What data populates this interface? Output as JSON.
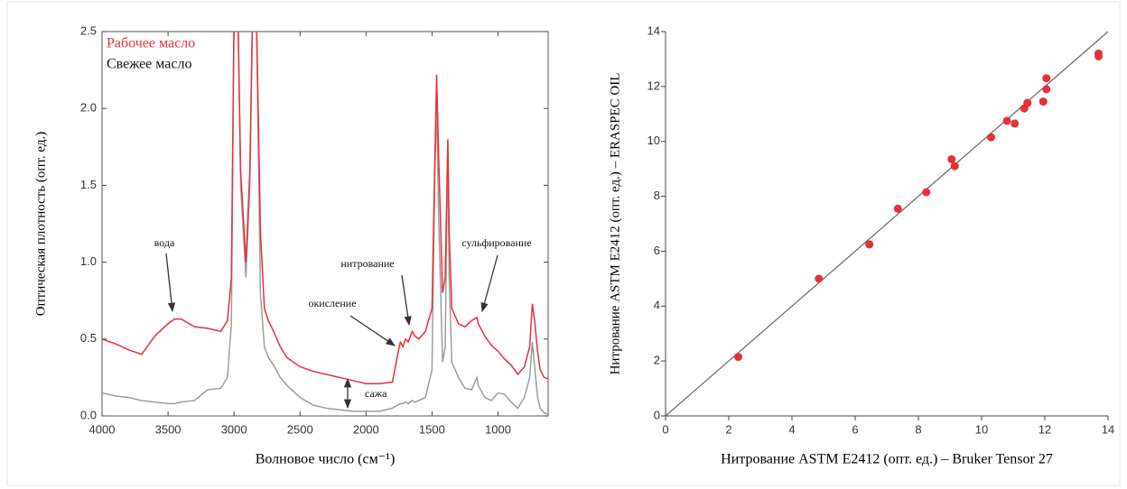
{
  "chart_data": [
    {
      "type": "line",
      "xlabel": "Волновое число (см⁻¹)",
      "ylabel": "Оптическая плотность (опт. ед.)",
      "xlim": [
        4000,
        620
      ],
      "ylim": [
        0,
        2.5
      ],
      "xticks": [
        4000,
        3500,
        3000,
        2500,
        2000,
        1500,
        1000
      ],
      "yticks": [
        {
          "value": 0,
          "label": "0.0"
        },
        {
          "value": 0.5,
          "label": "0.5"
        },
        {
          "value": 1,
          "label": "1.0"
        },
        {
          "value": 1.5,
          "label": "1.5"
        },
        {
          "value": 2,
          "label": "2.0"
        },
        {
          "value": 2.5,
          "label": "2.5"
        }
      ],
      "legend": "upper left",
      "annotations": [
        "вода",
        "нитрование",
        "окисление",
        "сульфирование",
        "сажа"
      ],
      "x": [
        4000,
        3900,
        3800,
        3700,
        3600,
        3500,
        3450,
        3400,
        3300,
        3200,
        3100,
        3050,
        3020,
        3000,
        2970,
        2950,
        2910,
        2880,
        2860,
        2830,
        2800,
        2770,
        2740,
        2700,
        2650,
        2600,
        2500,
        2400,
        2300,
        2200,
        2100,
        2000,
        1900,
        1800,
        1760,
        1740,
        1720,
        1700,
        1680,
        1650,
        1630,
        1600,
        1550,
        1500,
        1480,
        1465,
        1450,
        1420,
        1400,
        1380,
        1370,
        1350,
        1300,
        1250,
        1200,
        1160,
        1150,
        1100,
        1050,
        1000,
        950,
        900,
        850,
        800,
        760,
        740,
        720,
        700,
        680,
        650,
        620
      ],
      "series": [
        {
          "name": "Рабочее масло",
          "color": "#e8303a",
          "values": [
            0.5,
            0.47,
            0.43,
            0.4,
            0.52,
            0.6,
            0.63,
            0.63,
            0.58,
            0.57,
            0.55,
            0.62,
            0.9,
            2.6,
            2.6,
            1.6,
            1.0,
            1.6,
            2.6,
            2.6,
            1.2,
            0.7,
            0.62,
            0.55,
            0.45,
            0.38,
            0.32,
            0.29,
            0.27,
            0.25,
            0.23,
            0.21,
            0.21,
            0.22,
            0.4,
            0.48,
            0.45,
            0.5,
            0.48,
            0.55,
            0.52,
            0.5,
            0.55,
            0.7,
            1.6,
            2.22,
            1.7,
            0.8,
            0.9,
            1.8,
            1.2,
            0.7,
            0.6,
            0.58,
            0.62,
            0.64,
            0.6,
            0.52,
            0.46,
            0.42,
            0.37,
            0.33,
            0.27,
            0.32,
            0.45,
            0.73,
            0.6,
            0.42,
            0.3,
            0.25,
            0.24
          ]
        },
        {
          "name": "Свежее масло",
          "color": "#9a9e9c",
          "values": [
            0.15,
            0.13,
            0.12,
            0.1,
            0.09,
            0.08,
            0.08,
            0.09,
            0.1,
            0.17,
            0.18,
            0.25,
            0.6,
            2.6,
            2.6,
            1.5,
            0.9,
            1.5,
            2.6,
            2.6,
            0.8,
            0.45,
            0.38,
            0.33,
            0.25,
            0.2,
            0.12,
            0.07,
            0.05,
            0.04,
            0.03,
            0.03,
            0.03,
            0.05,
            0.07,
            0.08,
            0.08,
            0.09,
            0.08,
            0.1,
            0.09,
            0.1,
            0.12,
            0.3,
            1.5,
            2.05,
            1.3,
            0.35,
            0.45,
            1.78,
            0.9,
            0.35,
            0.25,
            0.18,
            0.17,
            0.25,
            0.2,
            0.12,
            0.1,
            0.15,
            0.14,
            0.09,
            0.05,
            0.12,
            0.25,
            0.48,
            0.3,
            0.12,
            0.05,
            0.02,
            0.01
          ]
        }
      ]
    },
    {
      "type": "scatter",
      "xlabel": "Нитрование ASTM E2412 (опт. ед.) – Bruker Tensor 27",
      "ylabel": "Нитрование ASTM E2412 (опт. ед.) – ERASPEC OIL",
      "xlim": [
        0,
        14
      ],
      "ylim": [
        0,
        14
      ],
      "xticks": [
        0,
        2,
        4,
        6,
        8,
        10,
        12,
        14
      ],
      "yticks": [
        0,
        2,
        4,
        6,
        8,
        10,
        12,
        14
      ],
      "color": "#e8303a",
      "x": [
        2.3,
        4.85,
        6.45,
        7.35,
        8.25,
        9.05,
        9.15,
        10.3,
        10.8,
        11.05,
        11.35,
        11.45,
        11.95,
        12.05,
        12.05,
        13.7,
        13.7
      ],
      "values": [
        2.15,
        5.0,
        6.25,
        7.55,
        8.15,
        9.35,
        9.1,
        10.15,
        10.75,
        10.65,
        11.2,
        11.4,
        11.45,
        11.9,
        12.3,
        13.1,
        13.2
      ]
    }
  ]
}
